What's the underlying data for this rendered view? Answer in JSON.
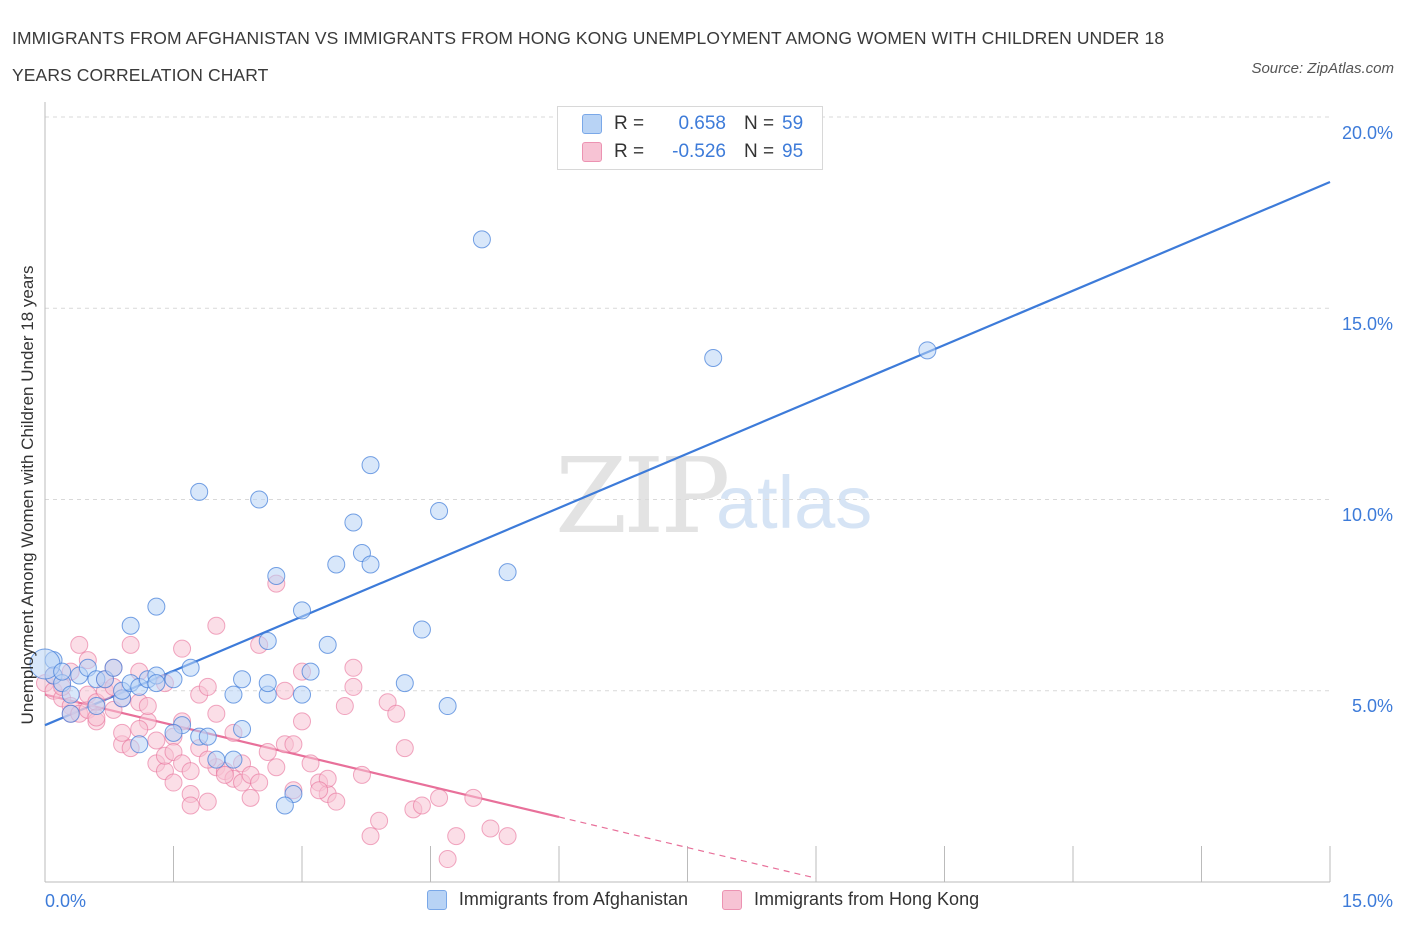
{
  "title": "IMMIGRANTS FROM AFGHANISTAN VS IMMIGRANTS FROM HONG KONG UNEMPLOYMENT AMONG WOMEN WITH CHILDREN UNDER 18 YEARS CORRELATION CHART",
  "source": "Source: ZipAtlas.com",
  "watermark": {
    "zip": "ZIP",
    "atlas": "atlas"
  },
  "colors": {
    "blue": "#3d7bd9",
    "blue_fill": "#b8d3f5",
    "pink": "#e8709a",
    "pink_fill": "#f7c3d4",
    "grid": "#d9d9d9"
  },
  "legend": {
    "rows": [
      {
        "r_label": "R =",
        "r_value": "0.658",
        "n_label": "N =",
        "n_value": "59"
      },
      {
        "r_label": "R =",
        "r_value": "-0.526",
        "n_label": "N =",
        "n_value": "95"
      }
    ]
  },
  "chart_data": {
    "type": "scatter",
    "title": "IMMIGRANTS FROM AFGHANISTAN VS IMMIGRANTS FROM HONG KONG UNEMPLOYMENT AMONG WOMEN WITH CHILDREN UNDER 18 YEARS CORRELATION CHART",
    "xlabel": "",
    "ylabel": "Unemployment Among Women with Children Under 18 years",
    "xlim": [
      0,
      15
    ],
    "ylim": [
      0,
      20
    ],
    "x_tick_labels": [
      "0.0%",
      "15.0%"
    ],
    "y_tick_labels": [
      "5.0%",
      "10.0%",
      "15.0%",
      "20.0%"
    ],
    "y_ticks": [
      5,
      10,
      15,
      20
    ],
    "grid": true,
    "legend_position": "top-center",
    "series": [
      {
        "name": "Immigrants from Afghanistan",
        "color": "#3d7bd9",
        "trend": {
          "x0": 0,
          "y0": 4.1,
          "x1": 15,
          "y1": 18.3
        },
        "points": [
          [
            0.1,
            5.8
          ],
          [
            0.1,
            5.4
          ],
          [
            0.2,
            5.2
          ],
          [
            0.3,
            4.9
          ],
          [
            0.3,
            4.4
          ],
          [
            0.4,
            5.4
          ],
          [
            0.5,
            5.6
          ],
          [
            0.6,
            5.3
          ],
          [
            0.7,
            5.3
          ],
          [
            0.8,
            5.6
          ],
          [
            0.9,
            4.8
          ],
          [
            0.9,
            5.0
          ],
          [
            1.0,
            5.2
          ],
          [
            1.1,
            5.1
          ],
          [
            1.2,
            5.3
          ],
          [
            1.0,
            6.7
          ],
          [
            1.3,
            5.4
          ],
          [
            1.3,
            5.2
          ],
          [
            1.5,
            5.3
          ],
          [
            1.7,
            5.6
          ],
          [
            1.6,
            4.1
          ],
          [
            1.5,
            3.9
          ],
          [
            1.8,
            3.8
          ],
          [
            1.9,
            3.8
          ],
          [
            1.1,
            3.6
          ],
          [
            2.0,
            3.2
          ],
          [
            2.3,
            4.0
          ],
          [
            2.3,
            5.3
          ],
          [
            2.2,
            4.9
          ],
          [
            1.3,
            7.2
          ],
          [
            1.8,
            10.2
          ],
          [
            2.2,
            3.2
          ],
          [
            2.6,
            4.9
          ],
          [
            2.7,
            8.0
          ],
          [
            2.5,
            10.0
          ],
          [
            2.6,
            6.3
          ],
          [
            2.6,
            5.2
          ],
          [
            2.9,
            2.3
          ],
          [
            2.8,
            2.0
          ],
          [
            3.0,
            7.1
          ],
          [
            3.0,
            4.9
          ],
          [
            3.1,
            5.5
          ],
          [
            3.3,
            6.2
          ],
          [
            3.4,
            8.3
          ],
          [
            3.6,
            9.4
          ],
          [
            3.7,
            8.6
          ],
          [
            3.8,
            8.3
          ],
          [
            3.8,
            10.9
          ],
          [
            4.2,
            5.2
          ],
          [
            4.4,
            6.6
          ],
          [
            4.6,
            9.7
          ],
          [
            4.7,
            4.6
          ],
          [
            5.1,
            16.8
          ],
          [
            5.4,
            8.1
          ],
          [
            7.8,
            13.7
          ],
          [
            10.3,
            13.9
          ],
          [
            0.0,
            5.7
          ],
          [
            0.2,
            5.5
          ],
          [
            0.6,
            4.6
          ]
        ]
      },
      {
        "name": "Immigrants from Hong Kong",
        "color": "#e8709a",
        "trend": {
          "x0": 0,
          "y0": 4.9,
          "x1": 6.0,
          "y1": 1.7,
          "dash_to_x": 9.0,
          "dash_to_y": 0.1
        },
        "points": [
          [
            0.0,
            5.2
          ],
          [
            0.1,
            5.0
          ],
          [
            0.1,
            5.4
          ],
          [
            0.2,
            4.8
          ],
          [
            0.2,
            5.1
          ],
          [
            0.3,
            4.6
          ],
          [
            0.3,
            4.4
          ],
          [
            0.4,
            4.4
          ],
          [
            0.4,
            6.2
          ],
          [
            0.5,
            4.5
          ],
          [
            0.5,
            4.9
          ],
          [
            0.5,
            5.8
          ],
          [
            0.6,
            4.2
          ],
          [
            0.6,
            4.7
          ],
          [
            0.7,
            5.0
          ],
          [
            0.7,
            5.3
          ],
          [
            0.8,
            4.5
          ],
          [
            0.8,
            5.1
          ],
          [
            0.8,
            5.6
          ],
          [
            0.9,
            3.6
          ],
          [
            0.9,
            4.8
          ],
          [
            1.0,
            6.2
          ],
          [
            1.0,
            3.5
          ],
          [
            1.1,
            4.7
          ],
          [
            1.1,
            5.5
          ],
          [
            1.2,
            4.2
          ],
          [
            1.2,
            4.6
          ],
          [
            1.3,
            3.7
          ],
          [
            1.3,
            3.1
          ],
          [
            1.4,
            2.9
          ],
          [
            1.4,
            3.3
          ],
          [
            1.5,
            3.8
          ],
          [
            1.5,
            3.4
          ],
          [
            1.6,
            3.1
          ],
          [
            1.6,
            4.2
          ],
          [
            1.6,
            6.1
          ],
          [
            1.7,
            2.3
          ],
          [
            1.7,
            2.9
          ],
          [
            1.8,
            4.9
          ],
          [
            1.8,
            3.5
          ],
          [
            1.9,
            2.1
          ],
          [
            1.9,
            5.1
          ],
          [
            2.0,
            4.4
          ],
          [
            2.0,
            3.0
          ],
          [
            2.1,
            2.9
          ],
          [
            2.2,
            3.9
          ],
          [
            2.2,
            2.7
          ],
          [
            2.3,
            2.6
          ],
          [
            2.3,
            3.1
          ],
          [
            2.4,
            2.8
          ],
          [
            2.5,
            2.6
          ],
          [
            2.6,
            3.4
          ],
          [
            2.7,
            3.0
          ],
          [
            2.8,
            3.6
          ],
          [
            2.8,
            5.0
          ],
          [
            2.9,
            3.6
          ],
          [
            2.5,
            6.2
          ],
          [
            2.7,
            7.8
          ],
          [
            3.0,
            5.5
          ],
          [
            3.0,
            4.2
          ],
          [
            3.1,
            3.1
          ],
          [
            3.2,
            2.6
          ],
          [
            3.3,
            2.3
          ],
          [
            3.4,
            2.1
          ],
          [
            3.5,
            4.6
          ],
          [
            3.6,
            5.1
          ],
          [
            3.6,
            5.6
          ],
          [
            3.7,
            2.8
          ],
          [
            3.8,
            1.2
          ],
          [
            3.9,
            1.6
          ],
          [
            4.0,
            4.7
          ],
          [
            4.1,
            4.4
          ],
          [
            4.2,
            3.5
          ],
          [
            4.3,
            1.9
          ],
          [
            4.4,
            2.0
          ],
          [
            4.6,
            2.2
          ],
          [
            4.7,
            0.6
          ],
          [
            4.8,
            1.2
          ],
          [
            5.0,
            2.2
          ],
          [
            5.2,
            1.4
          ],
          [
            5.4,
            1.2
          ],
          [
            2.0,
            6.7
          ],
          [
            1.4,
            5.2
          ],
          [
            1.1,
            4.0
          ],
          [
            0.9,
            3.9
          ],
          [
            3.3,
            2.7
          ],
          [
            3.2,
            2.4
          ],
          [
            2.9,
            2.4
          ],
          [
            2.4,
            2.2
          ],
          [
            2.1,
            2.8
          ],
          [
            1.9,
            3.2
          ],
          [
            1.5,
            2.6
          ],
          [
            1.7,
            2.0
          ],
          [
            0.6,
            4.3
          ],
          [
            0.3,
            5.5
          ]
        ]
      }
    ]
  },
  "bottom_legend": [
    {
      "label": "Immigrants from Afghanistan"
    },
    {
      "label": "Immigrants from Hong Kong"
    }
  ]
}
